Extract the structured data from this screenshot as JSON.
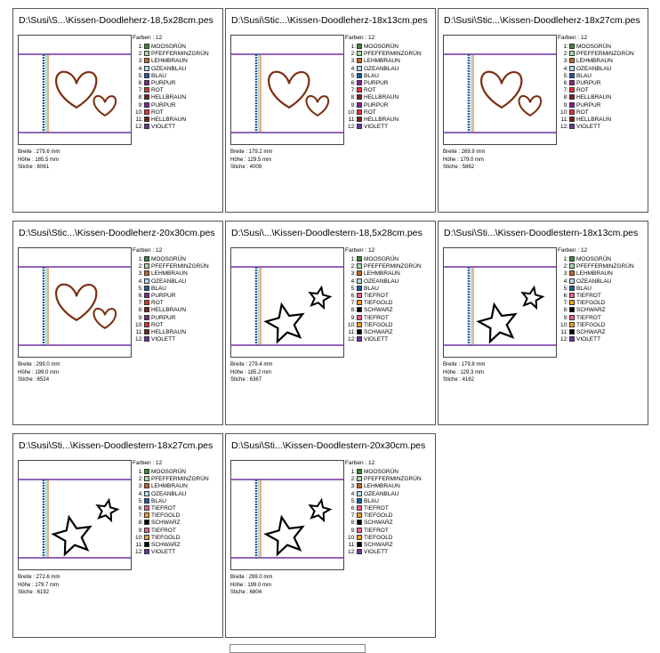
{
  "cards": [
    {
      "title": "D:\\Susi\\S...\\Kissen-Doodleherz-18,5x28cm.pes",
      "motif": "heart",
      "colors_title": "Farben : 12",
      "colors": [
        {
          "label": "1:",
          "name": "MOOSGRÜN",
          "color": "#3a8a3a"
        },
        {
          "label": "2:",
          "name": "PFEFFERMINZGRÜN",
          "color": "#a4dca4"
        },
        {
          "label": "3:",
          "name": "LEHMBRAUN",
          "color": "#c8641e"
        },
        {
          "label": "4:",
          "name": "OZEANBLAU",
          "color": "#b0dcec"
        },
        {
          "label": "5:",
          "name": "BLAU",
          "color": "#1e5aa8"
        },
        {
          "label": "6:",
          "name": "PURPUR",
          "color": "#8a2090"
        },
        {
          "label": "7:",
          "name": "ROT",
          "color": "#e83030"
        },
        {
          "label": "8:",
          "name": "HELLBRAUN",
          "color": "#7a2020"
        },
        {
          "label": "9:",
          "name": "PURPUR",
          "color": "#8a2090"
        },
        {
          "label": "10:",
          "name": "ROT",
          "color": "#e83030"
        },
        {
          "label": "11:",
          "name": "HELLBRAUN",
          "color": "#7a2020"
        },
        {
          "label": "12:",
          "name": "VIOLETT",
          "color": "#7030a0"
        }
      ],
      "stats": [
        "Breite : 279.6 mm",
        "Höhe : 185.5 mm",
        "Stiche : 6061"
      ]
    },
    {
      "title": "D:\\Susi\\Stic...\\Kissen-Doodleherz-18x13cm.pes",
      "motif": "heart",
      "colors_title": "Farben : 12",
      "colors": [
        {
          "label": "1:",
          "name": "MOOSGRÜN",
          "color": "#3a8a3a"
        },
        {
          "label": "2:",
          "name": "PFEFFERMINZGRÜN",
          "color": "#a4dca4"
        },
        {
          "label": "3:",
          "name": "LEHMBRAUN",
          "color": "#c8641e"
        },
        {
          "label": "4:",
          "name": "OZEANBLAU",
          "color": "#b0dcec"
        },
        {
          "label": "5:",
          "name": "BLAU",
          "color": "#1e5aa8"
        },
        {
          "label": "6:",
          "name": "PURPUR",
          "color": "#8a2090"
        },
        {
          "label": "7:",
          "name": "ROT",
          "color": "#e83030"
        },
        {
          "label": "8:",
          "name": "HELLBRAUN",
          "color": "#7a2020"
        },
        {
          "label": "9:",
          "name": "PURPUR",
          "color": "#8a2090"
        },
        {
          "label": "10:",
          "name": "ROT",
          "color": "#e83030"
        },
        {
          "label": "11:",
          "name": "HELLBRAUN",
          "color": "#7a2020"
        },
        {
          "label": "12:",
          "name": "VIOLETT",
          "color": "#7030a0"
        }
      ],
      "stats": [
        "Breite : 179.2 mm",
        "Höhe : 129.5 mm",
        "Stiche : 4008"
      ]
    },
    {
      "title": "D:\\Susi\\Stic...\\Kissen-Doodleherz-18x27cm.pes",
      "motif": "heart",
      "colors_title": "Farben : 12",
      "colors": [
        {
          "label": "1:",
          "name": "MOOSGRÜN",
          "color": "#3a8a3a"
        },
        {
          "label": "2:",
          "name": "PFEFFERMINZGRÜN",
          "color": "#a4dca4"
        },
        {
          "label": "3:",
          "name": "LEHMBRAUN",
          "color": "#c8641e"
        },
        {
          "label": "4:",
          "name": "OZEANBLAU",
          "color": "#b0dcec"
        },
        {
          "label": "5:",
          "name": "BLAU",
          "color": "#1e5aa8"
        },
        {
          "label": "6:",
          "name": "PURPUR",
          "color": "#8a2090"
        },
        {
          "label": "7:",
          "name": "ROT",
          "color": "#e83030"
        },
        {
          "label": "8:",
          "name": "HELLBRAUN",
          "color": "#7a2020"
        },
        {
          "label": "9:",
          "name": "PURPUR",
          "color": "#8a2090"
        },
        {
          "label": "10:",
          "name": "ROT",
          "color": "#e83030"
        },
        {
          "label": "11:",
          "name": "HELLBRAUN",
          "color": "#7a2020"
        },
        {
          "label": "12:",
          "name": "VIOLETT",
          "color": "#7030a0"
        }
      ],
      "stats": [
        "Breite : 269.9 mm",
        "Höhe : 179.0 mm",
        "Stiche : 5862"
      ]
    },
    {
      "title": "D:\\Susi\\Stic...\\Kissen-Doodleherz-20x30cm.pes",
      "motif": "heart",
      "colors_title": "Farben : 12",
      "colors": [
        {
          "label": "1:",
          "name": "MOOSGRÜN",
          "color": "#3a8a3a"
        },
        {
          "label": "2:",
          "name": "PFEFFERMINZGRÜN",
          "color": "#a4dca4"
        },
        {
          "label": "3:",
          "name": "LEHMBRAUN",
          "color": "#c8641e"
        },
        {
          "label": "4:",
          "name": "OZEANBLAU",
          "color": "#b0dcec"
        },
        {
          "label": "5:",
          "name": "BLAU",
          "color": "#1e5aa8"
        },
        {
          "label": "6:",
          "name": "PURPUR",
          "color": "#8a2090"
        },
        {
          "label": "7:",
          "name": "ROT",
          "color": "#e83030"
        },
        {
          "label": "8:",
          "name": "HELLBRAUN",
          "color": "#7a2020"
        },
        {
          "label": "9:",
          "name": "PURPUR",
          "color": "#8a2090"
        },
        {
          "label": "10:",
          "name": "ROT",
          "color": "#e83030"
        },
        {
          "label": "11:",
          "name": "HELLBRAUN",
          "color": "#7a2020"
        },
        {
          "label": "12:",
          "name": "VIOLETT",
          "color": "#7030a0"
        }
      ],
      "stats": [
        "Breite : 299.0 mm",
        "Höhe : 199.0 mm",
        "Stiche : 6524"
      ]
    },
    {
      "title": "D:\\Susi\\...\\Kissen-Doodlestern-18,5x28cm.pes",
      "motif": "star",
      "colors_title": "Farben : 12",
      "colors": [
        {
          "label": "1:",
          "name": "MOOSGRÜN",
          "color": "#3a8a3a"
        },
        {
          "label": "2:",
          "name": "PFEFFERMINZGRÜN",
          "color": "#a4dca4"
        },
        {
          "label": "3:",
          "name": "LEHMBRAUN",
          "color": "#c8641e"
        },
        {
          "label": "4:",
          "name": "OZEANBLAU",
          "color": "#b0dcec"
        },
        {
          "label": "5:",
          "name": "BLAU",
          "color": "#1e5aa8"
        },
        {
          "label": "6:",
          "name": "TIEFROT",
          "color": "#f0608c"
        },
        {
          "label": "7:",
          "name": "TIEFGOLD",
          "color": "#f0a020"
        },
        {
          "label": "8:",
          "name": "SCHWARZ",
          "color": "#000000"
        },
        {
          "label": "9:",
          "name": "TIEFROT",
          "color": "#f0608c"
        },
        {
          "label": "10:",
          "name": "TIEFGOLD",
          "color": "#f0a020"
        },
        {
          "label": "11:",
          "name": "SCHWARZ",
          "color": "#000000"
        },
        {
          "label": "12:",
          "name": "VIOLETT",
          "color": "#7030a0"
        }
      ],
      "stats": [
        "Breite : 279.4 mm",
        "Höhe : 185.2 mm",
        "Stiche : 6367"
      ]
    },
    {
      "title": "D:\\Susi\\Sti...\\Kissen-Doodlestern-18x13cm.pes",
      "motif": "star",
      "colors_title": "Farben : 12",
      "colors": [
        {
          "label": "1:",
          "name": "MOOSGRÜN",
          "color": "#3a8a3a"
        },
        {
          "label": "2:",
          "name": "PFEFFERMINZGRÜN",
          "color": "#a4dca4"
        },
        {
          "label": "3:",
          "name": "LEHMBRAUN",
          "color": "#c8641e"
        },
        {
          "label": "4:",
          "name": "OZEANBLAU",
          "color": "#b0dcec"
        },
        {
          "label": "5:",
          "name": "BLAU",
          "color": "#1e5aa8"
        },
        {
          "label": "6:",
          "name": "TIEFROT",
          "color": "#f0608c"
        },
        {
          "label": "7:",
          "name": "TIEFGOLD",
          "color": "#f0a020"
        },
        {
          "label": "8:",
          "name": "SCHWARZ",
          "color": "#000000"
        },
        {
          "label": "9:",
          "name": "TIEFROT",
          "color": "#f0608c"
        },
        {
          "label": "10:",
          "name": "TIEFGOLD",
          "color": "#f0a020"
        },
        {
          "label": "11:",
          "name": "SCHWARZ",
          "color": "#000000"
        },
        {
          "label": "12:",
          "name": "VIOLETT",
          "color": "#7030a0"
        }
      ],
      "stats": [
        "Breite : 179.8 mm",
        "Höhe : 129.3 mm",
        "Stiche : 4162"
      ]
    },
    {
      "title": "D:\\Susi\\Sti...\\Kissen-Doodlestern-18x27cm.pes",
      "motif": "star",
      "colors_title": "Farben : 12",
      "colors": [
        {
          "label": "1:",
          "name": "MOOSGRÜN",
          "color": "#3a8a3a"
        },
        {
          "label": "2:",
          "name": "PFEFFERMINZGRÜN",
          "color": "#a4dca4"
        },
        {
          "label": "3:",
          "name": "LEHMBRAUN",
          "color": "#c8641e"
        },
        {
          "label": "4:",
          "name": "OZEANBLAU",
          "color": "#b0dcec"
        },
        {
          "label": "5:",
          "name": "BLAU",
          "color": "#1e5aa8"
        },
        {
          "label": "6:",
          "name": "TIEFROT",
          "color": "#f0608c"
        },
        {
          "label": "7:",
          "name": "TIEFGOLD",
          "color": "#f0a020"
        },
        {
          "label": "8:",
          "name": "SCHWARZ",
          "color": "#000000"
        },
        {
          "label": "9:",
          "name": "TIEFROT",
          "color": "#f0608c"
        },
        {
          "label": "10:",
          "name": "TIEFGOLD",
          "color": "#f0a020"
        },
        {
          "label": "11:",
          "name": "SCHWARZ",
          "color": "#000000"
        },
        {
          "label": "12:",
          "name": "VIOLETT",
          "color": "#7030a0"
        }
      ],
      "stats": [
        "Breite : 272.6 mm",
        "Höhe : 179.7 mm",
        "Stiche : 6192"
      ]
    },
    {
      "title": "D:\\Susi\\Sti...\\Kissen-Doodlestern-20x30cm.pes",
      "motif": "star",
      "colors_title": "Farben : 12",
      "colors": [
        {
          "label": "1:",
          "name": "MOOSGRÜN",
          "color": "#3a8a3a"
        },
        {
          "label": "2:",
          "name": "PFEFFERMINZGRÜN",
          "color": "#a4dca4"
        },
        {
          "label": "3:",
          "name": "LEHMBRAUN",
          "color": "#c8641e"
        },
        {
          "label": "4:",
          "name": "OZEANBLAU",
          "color": "#b0dcec"
        },
        {
          "label": "5:",
          "name": "BLAU",
          "color": "#1e5aa8"
        },
        {
          "label": "6:",
          "name": "TIEFROT",
          "color": "#f0608c"
        },
        {
          "label": "7:",
          "name": "TIEFGOLD",
          "color": "#f0a020"
        },
        {
          "label": "8:",
          "name": "SCHWARZ",
          "color": "#000000"
        },
        {
          "label": "9:",
          "name": "TIEFROT",
          "color": "#f0608c"
        },
        {
          "label": "10:",
          "name": "TIEFGOLD",
          "color": "#f0a020"
        },
        {
          "label": "11:",
          "name": "SCHWARZ",
          "color": "#000000"
        },
        {
          "label": "12:",
          "name": "VIOLETT",
          "color": "#7030a0"
        }
      ],
      "stats": [
        "Breite : 299.0 mm",
        "Höhe : 199.0 mm",
        "Stiche : 6804"
      ]
    }
  ]
}
